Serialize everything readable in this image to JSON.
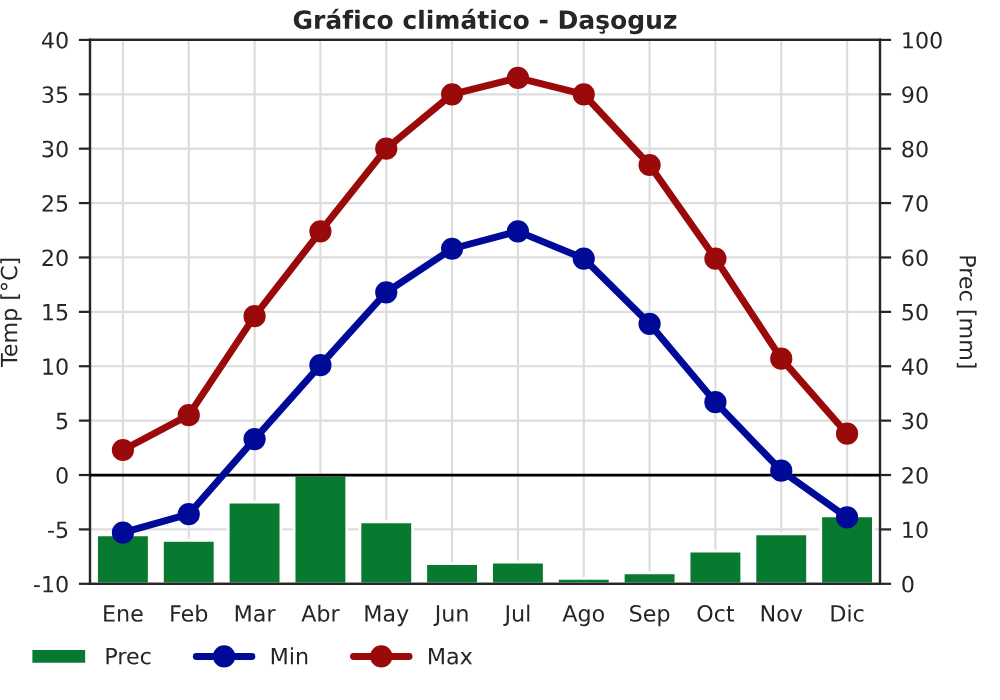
{
  "chart_data": {
    "type": "line",
    "title": "Gráfico climático - Daşoguz",
    "ylabel": "Temp [°C]",
    "y2label": "Prec [mm]",
    "categories": [
      "Ene",
      "Feb",
      "Mar",
      "Abr",
      "May",
      "Jun",
      "Jul",
      "Ago",
      "Sep",
      "Oct",
      "Nov",
      "Dic"
    ],
    "series": [
      {
        "name": "Prec",
        "type": "bar",
        "axis": "y2",
        "color": "#077a2f",
        "values": [
          9,
          8,
          15,
          20,
          11.4,
          3.7,
          4,
          1,
          2,
          6,
          9.2,
          12.5
        ]
      },
      {
        "name": "Min",
        "color": "#000a99",
        "values": [
          -5.3,
          -3.6,
          3.3,
          10.1,
          16.8,
          20.8,
          22.4,
          19.9,
          13.9,
          6.7,
          0.4,
          -3.9
        ]
      },
      {
        "name": "Max",
        "color": "#9a0a0a",
        "values": [
          2.3,
          5.5,
          14.6,
          22.4,
          30.0,
          35.0,
          36.5,
          35.0,
          28.5,
          19.9,
          10.7,
          3.8
        ]
      }
    ],
    "ylim": [
      -10,
      40
    ],
    "yticks": [
      -10,
      -5,
      0,
      5,
      10,
      15,
      20,
      25,
      30,
      35,
      40
    ],
    "y2lim": [
      0,
      100
    ],
    "y2ticks": [
      0,
      10,
      20,
      30,
      40,
      50,
      60,
      70,
      80,
      90,
      100
    ],
    "ref_lines": [
      {
        "axis": "y",
        "value": 0,
        "color": "#000000"
      }
    ],
    "grid": true,
    "legend": "bottom",
    "marker": "circle",
    "line_style": "solid"
  }
}
